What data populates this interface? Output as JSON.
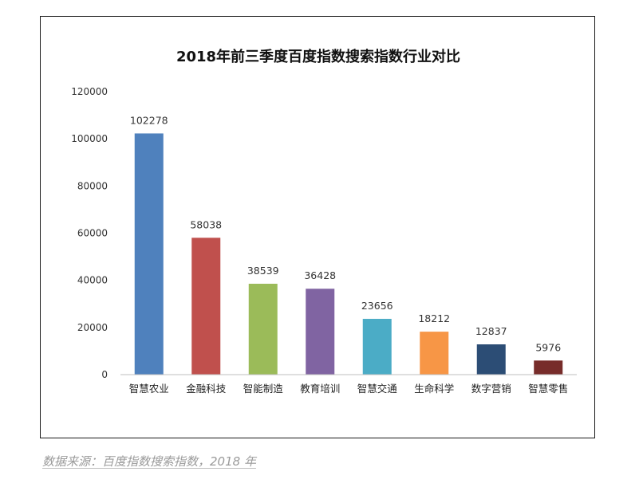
{
  "source_note": "数据来源：百度指数搜索指数，2018 年",
  "chart_data": {
    "type": "bar",
    "title": "2018年前三季度百度指数搜索指数行业对比",
    "xlabel": "",
    "ylabel": "",
    "ylim": [
      0,
      120000
    ],
    "yticks": [
      0,
      20000,
      40000,
      60000,
      80000,
      100000,
      120000
    ],
    "grid": false,
    "legend": "none",
    "categories": [
      "智慧农业",
      "金融科技",
      "智能制造",
      "教育培训",
      "智慧交通",
      "生命科学",
      "数字营销",
      "智慧零售"
    ],
    "values": [
      102278,
      58038,
      38539,
      36428,
      23656,
      18212,
      12837,
      5976
    ],
    "colors": [
      "#4f81bd",
      "#c0504d",
      "#9bbb59",
      "#8064a2",
      "#4bacc6",
      "#f79646",
      "#2c4d75",
      "#772c2a"
    ]
  }
}
